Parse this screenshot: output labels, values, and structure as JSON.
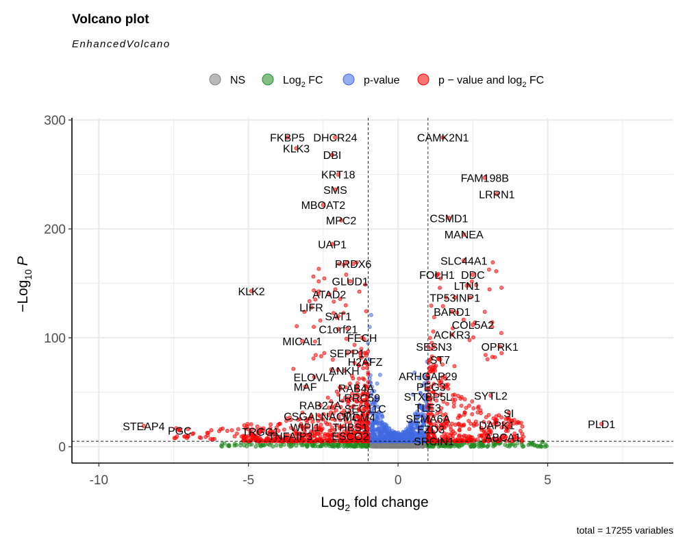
{
  "chart_data": {
    "type": "scatter",
    "title": "Volcano plot",
    "subtitle": "EnhancedVolcano",
    "caption": "total = 17255 variables",
    "xlabel": {
      "main": "Log",
      "sub": "2",
      "rest": " fold change"
    },
    "ylabel": {
      "pre": "−Log",
      "sub": "10",
      "italic": "P"
    },
    "xlim": [
      -10.9,
      9.2
    ],
    "ylim": [
      -15,
      302
    ],
    "x_ticks": [
      -10,
      -5,
      0,
      5
    ],
    "x_tick_labels": [
      "-10",
      "-5",
      "0",
      "5"
    ],
    "y_ticks": [
      0,
      100,
      200,
      300
    ],
    "y_tick_labels": [
      "0",
      "100",
      "200",
      "300"
    ],
    "fc_cutoff": 1,
    "p_cutoff_neglog10": 5,
    "grid": true,
    "legend_position": "top",
    "colors": {
      "NS": "#808080",
      "FC": "#228B22",
      "P": "#4169E1",
      "FC_P": "#FF0000"
    },
    "legend": [
      {
        "key": "NS",
        "label": "NS"
      },
      {
        "key": "FC",
        "label": "Log",
        "sub": "2",
        "rest": " FC"
      },
      {
        "key": "P",
        "label": "p-value"
      },
      {
        "key": "FC_P",
        "label": "p − value and log",
        "sub": "2",
        "rest": " FC"
      }
    ],
    "labeled_points": [
      {
        "gene": "FKBP5",
        "x": -3.7,
        "y": 284
      },
      {
        "gene": "DHCR24",
        "x": -2.1,
        "y": 284
      },
      {
        "gene": "KLK3",
        "x": -3.4,
        "y": 274
      },
      {
        "gene": "DBI",
        "x": -2.2,
        "y": 268
      },
      {
        "gene": "KRT18",
        "x": -2.0,
        "y": 250
      },
      {
        "gene": "SMS",
        "x": -2.1,
        "y": 236
      },
      {
        "gene": "MBOAT2",
        "x": -2.5,
        "y": 222
      },
      {
        "gene": "MPC2",
        "x": -1.9,
        "y": 208
      },
      {
        "gene": "UAP1",
        "x": -2.2,
        "y": 186
      },
      {
        "gene": "PRDX6",
        "x": -1.5,
        "y": 168
      },
      {
        "gene": "GLUD1",
        "x": -1.6,
        "y": 152
      },
      {
        "gene": "KLK2",
        "x": -4.9,
        "y": 143
      },
      {
        "gene": "ATAD2",
        "x": -2.3,
        "y": 140
      },
      {
        "gene": "LIFR",
        "x": -2.9,
        "y": 128
      },
      {
        "gene": "SAT1",
        "x": -2.0,
        "y": 120
      },
      {
        "gene": "C1orf21",
        "x": -2.0,
        "y": 108
      },
      {
        "gene": "FECH",
        "x": -1.2,
        "y": 100
      },
      {
        "gene": "MICAL1",
        "x": -3.2,
        "y": 97
      },
      {
        "gene": "SEPP1",
        "x": -1.7,
        "y": 86
      },
      {
        "gene": "H2AFZ",
        "x": -1.1,
        "y": 78
      },
      {
        "gene": "ANKH",
        "x": -1.8,
        "y": 70
      },
      {
        "gene": "ELOVL7",
        "x": -2.8,
        "y": 64
      },
      {
        "gene": "MAF",
        "x": -3.1,
        "y": 55
      },
      {
        "gene": "RAB4A",
        "x": -1.4,
        "y": 54
      },
      {
        "gene": "LRRC59",
        "x": -1.3,
        "y": 45
      },
      {
        "gene": "RAB27A",
        "x": -2.6,
        "y": 38
      },
      {
        "gene": "SEC11C",
        "x": -1.1,
        "y": 35
      },
      {
        "gene": "CSGALNACT1",
        "x": -2.6,
        "y": 28
      },
      {
        "gene": "MCM4",
        "x": -1.3,
        "y": 27
      },
      {
        "gene": "STEAP4",
        "x": -8.5,
        "y": 19
      },
      {
        "gene": "WIPI1",
        "x": -3.1,
        "y": 18
      },
      {
        "gene": "THBS1",
        "x": -1.6,
        "y": 18
      },
      {
        "gene": "TRGC1",
        "x": -4.6,
        "y": 14
      },
      {
        "gene": "PGC",
        "x": -7.3,
        "y": 15
      },
      {
        "gene": "TNFAIP3",
        "x": -3.6,
        "y": 10
      },
      {
        "gene": "ESCO2",
        "x": -1.6,
        "y": 10
      },
      {
        "gene": "CAMK2N1",
        "x": 1.5,
        "y": 284
      },
      {
        "gene": "FAM198B",
        "x": 2.9,
        "y": 247
      },
      {
        "gene": "LRRN1",
        "x": 3.3,
        "y": 232
      },
      {
        "gene": "CSMD1",
        "x": 1.7,
        "y": 210
      },
      {
        "gene": "MANEA",
        "x": 2.2,
        "y": 195
      },
      {
        "gene": "SLC44A1",
        "x": 2.2,
        "y": 171
      },
      {
        "gene": "FOLH1",
        "x": 1.3,
        "y": 158
      },
      {
        "gene": "DDC",
        "x": 2.5,
        "y": 158
      },
      {
        "gene": "LTN1",
        "x": 2.3,
        "y": 148
      },
      {
        "gene": "TP53INP1",
        "x": 1.9,
        "y": 137
      },
      {
        "gene": "BARD1",
        "x": 1.8,
        "y": 124
      },
      {
        "gene": "COL5A2",
        "x": 2.5,
        "y": 112
      },
      {
        "gene": "ACKR3",
        "x": 1.8,
        "y": 103
      },
      {
        "gene": "SESN3",
        "x": 1.2,
        "y": 92
      },
      {
        "gene": "OPRK1",
        "x": 3.4,
        "y": 92
      },
      {
        "gene": "ST7",
        "x": 1.4,
        "y": 80
      },
      {
        "gene": "ARHGAP29",
        "x": 1.0,
        "y": 65
      },
      {
        "gene": "PEG3",
        "x": 1.1,
        "y": 55
      },
      {
        "gene": "SYTL2",
        "x": 3.1,
        "y": 47
      },
      {
        "gene": "STXBP5L",
        "x": 1.0,
        "y": 46
      },
      {
        "gene": "TLE3",
        "x": 1.0,
        "y": 36
      },
      {
        "gene": "SI",
        "x": 3.7,
        "y": 31
      },
      {
        "gene": "SEMA6A",
        "x": 1.0,
        "y": 26
      },
      {
        "gene": "PLD1",
        "x": 6.8,
        "y": 21
      },
      {
        "gene": "DAPK1",
        "x": 3.3,
        "y": 20
      },
      {
        "gene": "FZD3",
        "x": 1.1,
        "y": 16
      },
      {
        "gene": "ABCA1",
        "x": 3.5,
        "y": 9
      },
      {
        "gene": "SRCIN1",
        "x": 1.2,
        "y": 5
      }
    ]
  }
}
